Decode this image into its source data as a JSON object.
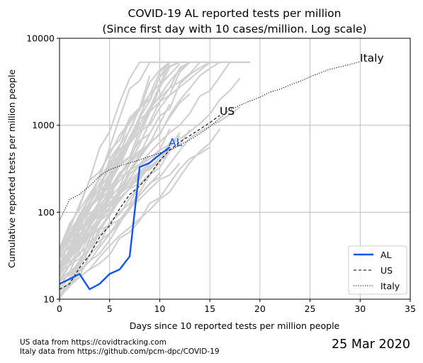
{
  "chart_data": {
    "type": "line",
    "title": "COVID-19 AL reported tests per million",
    "subtitle": "(Since first day with 10 cases/million. Log scale)",
    "xlabel": "Days since 10 reported tests per million people",
    "ylabel": "Cumulative reported tests per million people",
    "xlim": [
      0,
      35
    ],
    "ylim": [
      10,
      10000
    ],
    "yscale": "log",
    "grid": true,
    "legend_position": "lower-right",
    "x_ticks": [
      "0",
      "5",
      "10",
      "15",
      "20",
      "25",
      "30",
      "35"
    ],
    "y_ticks": [
      "10",
      "100",
      "1000",
      "10000"
    ],
    "series": [
      {
        "name": "AL",
        "color": "#1155ee",
        "style": "solid",
        "x": [
          0,
          1,
          2,
          3,
          4,
          5,
          6,
          7,
          8,
          9,
          10,
          11
        ],
        "y": [
          15,
          17,
          19.5,
          13,
          15,
          19.5,
          22,
          31,
          330,
          370,
          460,
          560
        ]
      },
      {
        "name": "US",
        "color": "#000000",
        "style": "dashed",
        "x": [
          0,
          1,
          2,
          3,
          4,
          5,
          6,
          7,
          8,
          9,
          10,
          11,
          12,
          13,
          14,
          15,
          16
        ],
        "y": [
          13,
          15,
          23,
          32,
          52,
          70,
          110,
          160,
          200,
          270,
          390,
          520,
          640,
          760,
          900,
          1070,
          1300
        ]
      },
      {
        "name": "Italy",
        "color": "#000000",
        "style": "dotted",
        "x": [
          0,
          1,
          2,
          3,
          4,
          5,
          6,
          7,
          8,
          9,
          10,
          11,
          12,
          13,
          14,
          15,
          16,
          17,
          18,
          19,
          20,
          21,
          22,
          23,
          24,
          25,
          26,
          27,
          28,
          29,
          30
        ],
        "y": [
          80,
          140,
          160,
          200,
          260,
          310,
          340,
          370,
          400,
          440,
          480,
          520,
          590,
          680,
          800,
          960,
          1200,
          1500,
          1700,
          1900,
          2100,
          2400,
          2600,
          2900,
          3200,
          3600,
          4000,
          4400,
          4700,
          5000,
          5400
        ]
      }
    ],
    "inline_labels": [
      {
        "text": "AL",
        "color": "#1155ee"
      },
      {
        "text": "US",
        "color": "#000000"
      },
      {
        "text": "Italy",
        "color": "#000000"
      }
    ],
    "background_series_color": "#d0d0d0"
  },
  "footer": {
    "source_us": "US data from https://covidtracking.com",
    "source_italy": "Italy data from https://github.com/pcm-dpc/COVID-19",
    "date": "25 Mar 2020"
  }
}
